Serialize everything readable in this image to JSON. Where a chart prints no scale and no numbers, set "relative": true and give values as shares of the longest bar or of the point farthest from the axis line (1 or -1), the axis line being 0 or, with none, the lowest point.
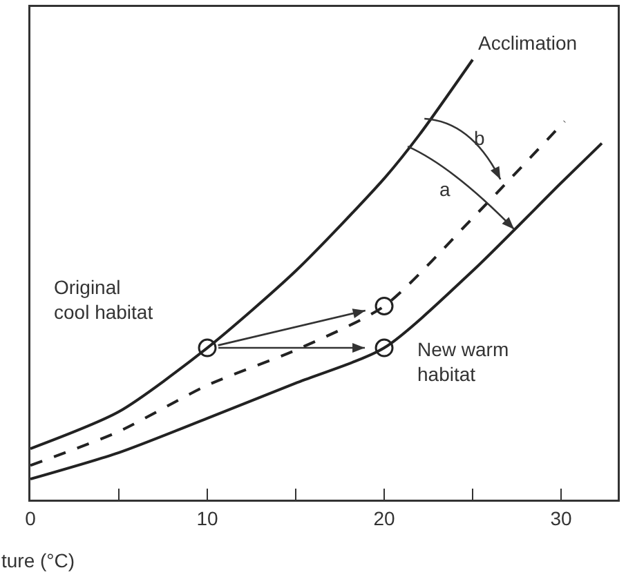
{
  "chart_data": {
    "type": "line",
    "relative": true,
    "xlabel": "ture (°C)",
    "xlim": [
      0,
      33.2
    ],
    "xticks": [
      0,
      {
        "value": 5,
        "label": null
      },
      10,
      {
        "value": 15,
        "label": null
      },
      20,
      {
        "value": 25,
        "label": null
      },
      30
    ],
    "grid": false,
    "marker": "none",
    "series": [
      {
        "color": "#222222",
        "x": [
          0,
          5,
          10,
          15,
          20,
          22,
          25
        ],
        "values": [
          0.116,
          0.2,
          0.345,
          0.52,
          0.73,
          0.83,
          1.0
        ]
      },
      {
        "color": "#222222",
        "line_style": "dashed",
        "x": [
          0,
          5,
          10,
          15,
          20,
          25,
          30.2
        ],
        "values": [
          0.078,
          0.155,
          0.26,
          0.34,
          0.44,
          0.64,
          0.86
        ]
      },
      {
        "color": "#222222",
        "x": [
          0,
          5,
          10,
          15,
          20,
          25,
          30,
          32.3
        ],
        "values": [
          0.047,
          0.107,
          0.185,
          0.265,
          0.345,
          0.52,
          0.72,
          0.81
        ]
      },
      {
        "type": "scatter",
        "marker": "circle",
        "color": "#222222",
        "x": [
          10,
          20,
          20
        ],
        "values": [
          0.345,
          0.44,
          0.345
        ]
      }
    ],
    "annotations": [
      {
        "text": "Acclimation",
        "x": 25,
        "y": 1.0
      },
      "b",
      "a",
      "Original\ncool habitat",
      {
        "text": "New warm\nhabitat",
        "x": 20,
        "y": 0.345
      }
    ]
  }
}
